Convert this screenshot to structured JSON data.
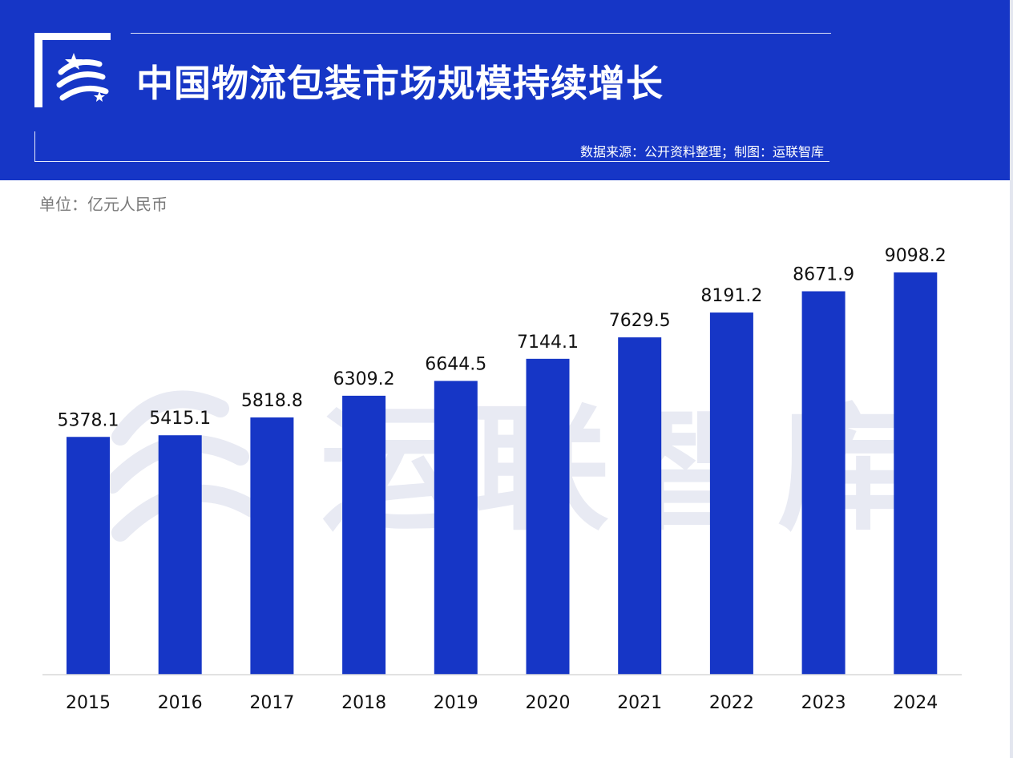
{
  "header": {
    "title": "中国物流包装市场规模持续增长",
    "source": "数据来源：公开资料整理；制图：运联智库"
  },
  "watermark": {
    "text": "运联智库"
  },
  "unit_label": "单位：亿元人民币",
  "colors": {
    "brand_blue": "#1636c6",
    "bar": "#1636c6",
    "watermark": "#e8eaf3"
  },
  "chart_data": {
    "type": "bar",
    "categories": [
      "2015",
      "2016",
      "2017",
      "2018",
      "2019",
      "2020",
      "2021",
      "2022",
      "2023",
      "2024"
    ],
    "values": [
      5378.1,
      5415.1,
      5818.8,
      6309.2,
      6644.5,
      7144.1,
      7629.5,
      8191.2,
      8671.9,
      9098.2
    ],
    "value_labels": [
      "5378.1",
      "5415.1",
      "5818.8",
      "6309.2",
      "6644.5",
      "7144.1",
      "7629.5",
      "8191.2",
      "8671.9",
      "9098.2"
    ],
    "title": "中国物流包装市场规模持续增长",
    "xlabel": "",
    "ylabel": "",
    "ylim": [
      0,
      9300
    ],
    "grid": false,
    "legend": "none"
  }
}
